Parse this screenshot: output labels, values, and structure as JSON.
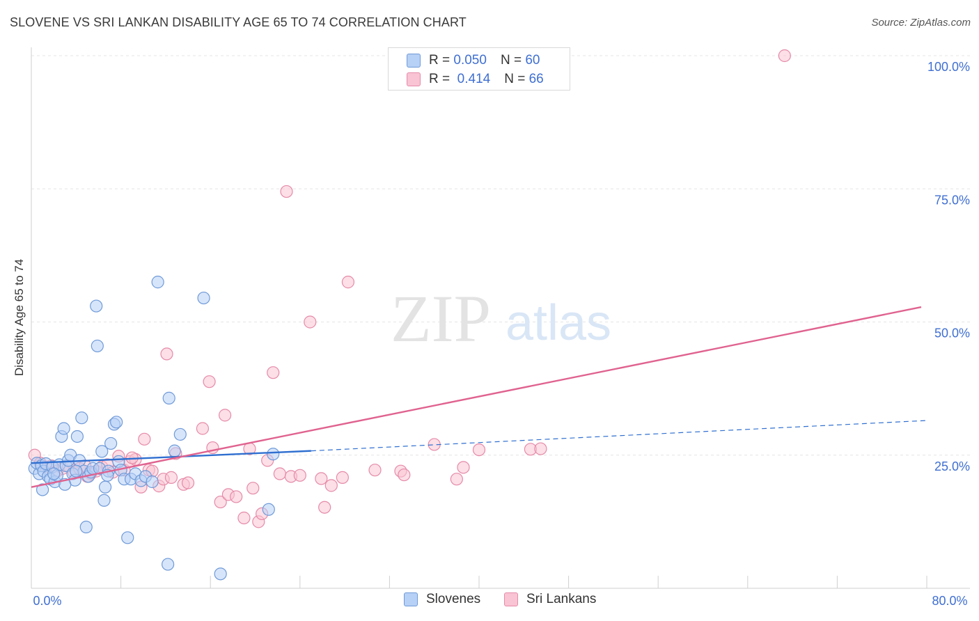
{
  "chart_data": {
    "type": "scatter",
    "title": "SLOVENE VS SRI LANKAN DISABILITY AGE 65 TO 74 CORRELATION CHART",
    "source": "Source: ZipAtlas.com",
    "watermark": {
      "zip": "ZIP",
      "atlas": "atlas"
    },
    "xlabel": "",
    "ylabel": "Disability Age 65 to 74",
    "xlim": [
      0,
      80
    ],
    "ylim": [
      0,
      102
    ],
    "x_tick_labels": {
      "min": "0.0%",
      "max": "80.0%"
    },
    "y_ticks": [
      {
        "value": 25,
        "label": "25.0%"
      },
      {
        "value": 50,
        "label": "50.0%"
      },
      {
        "value": 75,
        "label": "75.0%"
      },
      {
        "value": 100,
        "label": "100.0%"
      }
    ],
    "legend": [
      {
        "name": "Slovenes",
        "r_label": "R =",
        "r_value": "0.050",
        "n_label": "N =",
        "n_value": "60"
      },
      {
        "name": "Sri Lankans",
        "r_label": "R =",
        "r_value": "0.414",
        "n_label": "N =",
        "n_value": "66"
      }
    ],
    "series": [
      {
        "name": "Slovenes",
        "color": "#6f9ad8",
        "fill": "#b7d0f5",
        "line_color": "#2f6fd0",
        "trend": {
          "x0": 0,
          "y0": 23.5,
          "x1": 25,
          "y1": 25.8,
          "dashed_to_x": 80,
          "dashed_to_y": 31.5
        },
        "points": [
          [
            0.3,
            22.5
          ],
          [
            0.5,
            23.5
          ],
          [
            0.7,
            21.5
          ],
          [
            0.9,
            23.0
          ],
          [
            1.1,
            22.0
          ],
          [
            1.3,
            23.4
          ],
          [
            1.5,
            21.0
          ],
          [
            1.7,
            20.5
          ],
          [
            1.9,
            22.8
          ],
          [
            2.1,
            20.0
          ],
          [
            2.3,
            21.2
          ],
          [
            2.5,
            23.2
          ],
          [
            2.7,
            28.5
          ],
          [
            2.9,
            30.0
          ],
          [
            3.1,
            23.0
          ],
          [
            3.3,
            24.0
          ],
          [
            3.5,
            25.0
          ],
          [
            3.7,
            21.5
          ],
          [
            3.9,
            20.3
          ],
          [
            4.1,
            28.5
          ],
          [
            4.3,
            24.0
          ],
          [
            4.5,
            32.0
          ],
          [
            4.7,
            22.0
          ],
          [
            4.9,
            11.5
          ],
          [
            5.1,
            21.0
          ],
          [
            5.3,
            21.8
          ],
          [
            5.5,
            22.5
          ],
          [
            5.8,
            53.0
          ],
          [
            5.9,
            45.5
          ],
          [
            6.1,
            22.5
          ],
          [
            6.3,
            25.7
          ],
          [
            6.5,
            16.5
          ],
          [
            6.6,
            19.0
          ],
          [
            6.9,
            22.0
          ],
          [
            7.1,
            27.2
          ],
          [
            7.4,
            30.8
          ],
          [
            7.6,
            31.2
          ],
          [
            7.8,
            23.8
          ],
          [
            8.0,
            22.2
          ],
          [
            8.3,
            20.5
          ],
          [
            8.6,
            9.5
          ],
          [
            8.9,
            20.5
          ],
          [
            9.3,
            21.5
          ],
          [
            9.8,
            20.2
          ],
          [
            10.2,
            21.0
          ],
          [
            10.8,
            20.0
          ],
          [
            11.3,
            57.5
          ],
          [
            12.2,
            4.5
          ],
          [
            12.3,
            35.7
          ],
          [
            12.8,
            25.8
          ],
          [
            13.3,
            28.9
          ],
          [
            15.4,
            54.5
          ],
          [
            16.9,
            2.7
          ],
          [
            21.2,
            14.8
          ],
          [
            21.6,
            25.2
          ],
          [
            1.0,
            18.5
          ],
          [
            2.0,
            21.5
          ],
          [
            3.0,
            19.5
          ],
          [
            4.0,
            22.0
          ],
          [
            6.8,
            21.2
          ]
        ]
      },
      {
        "name": "Sri Lankans",
        "color": "#e58aa8",
        "fill": "#f9c4d4",
        "line_color": "#e0628f",
        "trend": {
          "x0": 0,
          "y0": 19.0,
          "x1": 79.5,
          "y1": 52.8
        },
        "points": [
          [
            0.3,
            25.0
          ],
          [
            0.8,
            23.5
          ],
          [
            1.3,
            22.8
          ],
          [
            1.8,
            23.0
          ],
          [
            2.3,
            22.0
          ],
          [
            2.8,
            22.5
          ],
          [
            3.3,
            23.0
          ],
          [
            3.8,
            21.8
          ],
          [
            4.3,
            22.5
          ],
          [
            4.8,
            23.0
          ],
          [
            5.3,
            21.5
          ],
          [
            5.8,
            22.0
          ],
          [
            6.3,
            22.8
          ],
          [
            6.8,
            23.2
          ],
          [
            7.3,
            21.8
          ],
          [
            7.8,
            24.8
          ],
          [
            8.3,
            22.2
          ],
          [
            8.8,
            23.8
          ],
          [
            9.3,
            24.2
          ],
          [
            9.8,
            19.0
          ],
          [
            10.1,
            28.0
          ],
          [
            10.5,
            22.2
          ],
          [
            10.8,
            22.0
          ],
          [
            11.4,
            19.2
          ],
          [
            11.8,
            20.5
          ],
          [
            12.1,
            44.0
          ],
          [
            12.5,
            20.8
          ],
          [
            12.9,
            25.3
          ],
          [
            13.6,
            19.5
          ],
          [
            14.0,
            19.8
          ],
          [
            15.3,
            30.0
          ],
          [
            15.9,
            38.8
          ],
          [
            16.2,
            26.4
          ],
          [
            16.9,
            16.2
          ],
          [
            17.3,
            32.5
          ],
          [
            17.6,
            17.6
          ],
          [
            18.3,
            17.2
          ],
          [
            19.0,
            13.2
          ],
          [
            19.5,
            26.2
          ],
          [
            19.8,
            18.8
          ],
          [
            20.3,
            12.5
          ],
          [
            20.6,
            14.0
          ],
          [
            21.1,
            24.0
          ],
          [
            21.6,
            40.5
          ],
          [
            22.2,
            21.5
          ],
          [
            22.8,
            74.5
          ],
          [
            23.2,
            21.0
          ],
          [
            24.0,
            21.2
          ],
          [
            24.9,
            50.0
          ],
          [
            25.9,
            20.6
          ],
          [
            26.2,
            15.2
          ],
          [
            26.8,
            19.3
          ],
          [
            27.8,
            20.8
          ],
          [
            28.3,
            57.5
          ],
          [
            30.7,
            22.2
          ],
          [
            33.0,
            22.0
          ],
          [
            33.3,
            21.3
          ],
          [
            36.0,
            27.0
          ],
          [
            38.0,
            20.5
          ],
          [
            38.6,
            22.7
          ],
          [
            40.0,
            26.0
          ],
          [
            44.6,
            26.1
          ],
          [
            45.5,
            26.2
          ],
          [
            67.3,
            100.0
          ],
          [
            5.0,
            21.0
          ],
          [
            9.0,
            24.5
          ]
        ]
      }
    ]
  }
}
